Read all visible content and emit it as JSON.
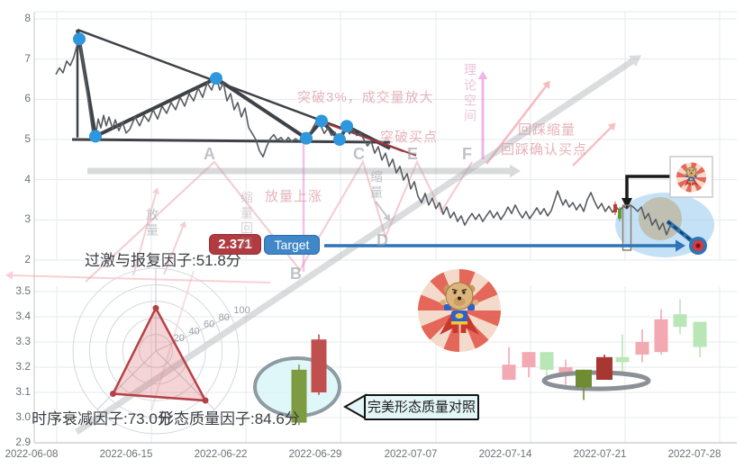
{
  "chart_data": [
    {
      "type": "line",
      "title": "",
      "xlabel": "",
      "ylabel": "",
      "ylim": [
        2,
        8
      ],
      "y_ticks": [
        8,
        7,
        6,
        5,
        4,
        3,
        2
      ],
      "x_dates": [
        "2022-06-08",
        "2022-06-15",
        "2022-06-22",
        "2022-06-29",
        "2022-07-07",
        "2022-07-14",
        "2022-07-21",
        "2022-07-28"
      ],
      "grid": "on",
      "series": [
        {
          "name": "price",
          "points": [
            [
              62,
              6.62
            ],
            [
              66,
              6.78
            ],
            [
              70,
              6.66
            ],
            [
              74,
              6.95
            ],
            [
              78,
              6.84
            ],
            [
              82,
              7.05
            ],
            [
              85,
              7.3
            ],
            [
              88,
              7.6
            ],
            [
              92,
              6.9
            ],
            [
              95,
              6.46
            ],
            [
              99,
              5.78
            ],
            [
              103,
              5.16
            ],
            [
              106,
              5.07
            ],
            [
              109,
              5.51
            ],
            [
              112,
              5.29
            ],
            [
              115,
              5.6
            ],
            [
              118,
              5.34
            ],
            [
              121,
              5.56
            ],
            [
              125,
              5.27
            ],
            [
              128,
              5.49
            ],
            [
              132,
              5.22
            ],
            [
              136,
              5.43
            ],
            [
              140,
              5.16
            ],
            [
              144,
              5.25
            ],
            [
              150,
              5.56
            ],
            [
              155,
              5.34
            ],
            [
              160,
              5.6
            ],
            [
              165,
              5.45
            ],
            [
              170,
              5.74
            ],
            [
              175,
              5.51
            ],
            [
              180,
              5.83
            ],
            [
              185,
              5.65
            ],
            [
              190,
              5.92
            ],
            [
              195,
              5.74
            ],
            [
              200,
              6.05
            ],
            [
              205,
              5.83
            ],
            [
              210,
              6.14
            ],
            [
              215,
              5.96
            ],
            [
              220,
              6.28
            ],
            [
              225,
              6.05
            ],
            [
              230,
              6.41
            ],
            [
              235,
              6.23
            ],
            [
              240,
              6.57
            ],
            [
              244,
              6.23
            ],
            [
              248,
              6.41
            ],
            [
              252,
              5.96
            ],
            [
              256,
              6.14
            ],
            [
              260,
              5.74
            ],
            [
              264,
              5.92
            ],
            [
              268,
              5.56
            ],
            [
              272,
              5.78
            ],
            [
              276,
              5.3
            ],
            [
              280,
              5.15
            ],
            [
              284,
              5.0
            ],
            [
              288,
              4.72
            ],
            [
              292,
              4.57
            ],
            [
              296,
              4.82
            ],
            [
              300,
              5.02
            ],
            [
              304,
              5.12
            ],
            [
              308,
              4.98
            ],
            [
              312,
              5.05
            ],
            [
              316,
              4.93
            ],
            [
              320,
              5.05
            ],
            [
              324,
              4.95
            ],
            [
              328,
              5.02
            ],
            [
              332,
              4.96
            ],
            [
              336,
              5.05
            ],
            [
              340,
              4.98
            ],
            [
              344,
              5.15
            ],
            [
              348,
              5.32
            ],
            [
              352,
              5.48
            ],
            [
              356,
              5.35
            ],
            [
              360,
              5.15
            ],
            [
              364,
              5.28
            ],
            [
              368,
              5.1
            ],
            [
              372,
              5.18
            ],
            [
              376,
              4.98
            ],
            [
              380,
              5.18
            ],
            [
              384,
              5.34
            ],
            [
              388,
              5.14
            ],
            [
              392,
              5.25
            ],
            [
              396,
              5.1
            ],
            [
              400,
              5.16
            ],
            [
              404,
              5.0
            ],
            [
              408,
              4.84
            ],
            [
              412,
              4.96
            ],
            [
              416,
              4.66
            ],
            [
              420,
              4.82
            ],
            [
              424,
              4.49
            ],
            [
              428,
              4.66
            ],
            [
              432,
              4.33
            ],
            [
              436,
              4.51
            ],
            [
              440,
              4.17
            ],
            [
              444,
              4.33
            ],
            [
              448,
              3.99
            ],
            [
              452,
              4.15
            ],
            [
              456,
              3.77
            ],
            [
              460,
              3.95
            ],
            [
              464,
              3.59
            ],
            [
              468,
              3.43
            ],
            [
              472,
              3.66
            ],
            [
              476,
              3.37
            ],
            [
              480,
              3.54
            ],
            [
              484,
              3.28
            ],
            [
              488,
              3.43
            ],
            [
              492,
              3.14
            ],
            [
              496,
              3.32
            ],
            [
              500,
              3.05
            ],
            [
              504,
              3.19
            ],
            [
              508,
              2.96
            ],
            [
              512,
              3.1
            ],
            [
              516,
              2.87
            ],
            [
              520,
              3.03
            ],
            [
              524,
              3.16
            ],
            [
              528,
              3.01
            ],
            [
              532,
              3.14
            ],
            [
              536,
              2.96
            ],
            [
              540,
              3.1
            ],
            [
              544,
              3.23
            ],
            [
              548,
              3.05
            ],
            [
              552,
              3.19
            ],
            [
              556,
              3.01
            ],
            [
              560,
              3.14
            ],
            [
              564,
              3.32
            ],
            [
              568,
              3.16
            ],
            [
              572,
              3.37
            ],
            [
              576,
              3.19
            ],
            [
              580,
              3.05
            ],
            [
              584,
              3.21
            ],
            [
              588,
              3.03
            ],
            [
              592,
              3.16
            ],
            [
              596,
              3.3
            ],
            [
              600,
              3.14
            ],
            [
              604,
              3.28
            ],
            [
              608,
              3.1
            ],
            [
              612,
              3.23
            ],
            [
              616,
              3.5
            ],
            [
              619,
              3.72
            ],
            [
              622,
              3.54
            ],
            [
              625,
              3.37
            ],
            [
              628,
              3.5
            ],
            [
              632,
              3.32
            ],
            [
              636,
              3.43
            ],
            [
              640,
              3.25
            ],
            [
              644,
              3.39
            ],
            [
              648,
              3.21
            ],
            [
              652,
              3.5
            ],
            [
              656,
              3.68
            ],
            [
              660,
              3.46
            ],
            [
              664,
              3.28
            ],
            [
              668,
              3.41
            ],
            [
              672,
              3.21
            ],
            [
              676,
              3.34
            ],
            [
              680,
              3.19
            ],
            [
              684,
              3.32
            ],
            [
              688,
              3.23
            ],
            [
              692,
              3.34
            ],
            [
              696,
              3.28
            ],
            [
              700,
              3.37
            ],
            [
              704,
              3.3
            ],
            [
              708,
              3.21
            ],
            [
              712,
              3.32
            ],
            [
              716,
              3.03
            ],
            [
              720,
              3.16
            ],
            [
              724,
              2.87
            ],
            [
              728,
              3.01
            ],
            [
              732,
              2.76
            ],
            [
              736,
              2.92
            ],
            [
              740,
              2.63
            ],
            [
              744,
              2.85
            ]
          ]
        }
      ],
      "pattern_dots": [
        [
          88,
          7.5
        ],
        [
          106,
          5.08
        ],
        [
          240,
          6.52
        ],
        [
          340,
          5.03
        ],
        [
          357,
          5.46
        ],
        [
          377,
          5.0
        ],
        [
          385,
          5.33
        ]
      ],
      "pattern_zigzag": [
        [
          86,
          7.73
        ],
        [
          106,
          5.08
        ],
        [
          240,
          6.52
        ],
        [
          340,
          5.03
        ],
        [
          357,
          5.46
        ],
        [
          377,
          5.0
        ],
        [
          385,
          5.33
        ],
        [
          433,
          4.78
        ]
      ],
      "triangle_vertical": [
        [
          86,
          7.73
        ],
        [
          86,
          5.05
        ]
      ],
      "triangle_horizontal": [
        [
          80,
          5.0
        ],
        [
          433,
          4.93
        ]
      ],
      "triangle_hypotenuse": [
        [
          86,
          7.73
        ],
        [
          448,
          4.71
        ]
      ],
      "red_trend_line": [
        [
          357,
          5.44
        ],
        [
          462,
          4.6
        ]
      ],
      "target_price": 2.371
    },
    {
      "type": "candlestick",
      "ylim": [
        2.9,
        3.5
      ],
      "y_ticks": [
        3.5,
        3.4,
        3.3,
        3.2,
        3.1,
        3.0,
        2.9
      ],
      "grid": "on",
      "perfect_pattern_candles": [
        {
          "x": 332,
          "open": 3.19,
          "close": 2.98,
          "high": 3.21,
          "low": 2.97,
          "color": "pgreen"
        },
        {
          "x": 354,
          "open": 3.1,
          "close": 3.31,
          "high": 3.33,
          "low": 3.09,
          "color": "pred"
        }
      ],
      "candles": [
        {
          "x": 565,
          "open": 3.15,
          "close": 3.21,
          "high": 3.28,
          "low": 3.15,
          "color": "pink"
        },
        {
          "x": 587,
          "open": 3.2,
          "close": 3.26,
          "high": 3.26,
          "low": 3.16,
          "color": "pink"
        },
        {
          "x": 607,
          "open": 3.26,
          "close": 3.19,
          "high": 3.26,
          "low": 3.16,
          "color": "green"
        },
        {
          "x": 628,
          "open": 3.17,
          "close": 3.2,
          "high": 3.23,
          "low": 3.13,
          "color": "pink"
        },
        {
          "x": 648,
          "open": 3.19,
          "close": 3.12,
          "high": 3.19,
          "low": 3.07,
          "color": "dgreen"
        },
        {
          "x": 671,
          "open": 3.15,
          "close": 3.24,
          "high": 3.25,
          "low": 3.15,
          "color": "dred"
        },
        {
          "x": 691,
          "open": 3.24,
          "close": 3.22,
          "high": 3.33,
          "low": 3.17,
          "color": "green"
        },
        {
          "x": 713,
          "open": 3.25,
          "close": 3.3,
          "high": 3.35,
          "low": 3.22,
          "color": "pink"
        },
        {
          "x": 734,
          "open": 3.26,
          "close": 3.39,
          "high": 3.43,
          "low": 3.25,
          "color": "pink"
        },
        {
          "x": 755,
          "open": 3.41,
          "close": 3.36,
          "high": 3.47,
          "low": 3.33,
          "color": "green"
        },
        {
          "x": 777,
          "open": 3.38,
          "close": 3.28,
          "high": 3.38,
          "low": 3.24,
          "color": "green"
        }
      ]
    },
    {
      "type": "radar",
      "categories": [
        "过激与报复因子",
        "时序衰减因子",
        "形态质量因子"
      ],
      "values": [
        51.8,
        73.0,
        84.6
      ],
      "rings": [
        20,
        40,
        60,
        80,
        100
      ],
      "max": 100
    }
  ],
  "annotations": {
    "target_value": "2.371",
    "target_label": "Target",
    "factor_overreaction": "过激与报复因子:51.8分",
    "factor_time_decay": "时序衰减因子:73.0分",
    "factor_pattern_quality": "形态质量因子:84.6分",
    "callout": "完美形态质量对照"
  },
  "watermark": {
    "breakout_volume": "突破3%，成交量放大",
    "breakout_buy_point": "突破买点",
    "pullback_shrink": "回踩缩量",
    "pullback_confirm_buy": "回踩确认买点",
    "volume_rise": "放量上涨",
    "theory_space": "理论空间",
    "volume_v": "放量",
    "shrink_pullback_v": "缩量回踩",
    "shrink_v": "缩量",
    "letters": {
      "A": "A",
      "B": "B",
      "C": "C",
      "D": "D",
      "E": "E",
      "F": "F"
    }
  },
  "icons": {
    "mascot": "superhero-dog-mascot",
    "target_marker": "bullseye-target-icon"
  },
  "colors": {
    "dot_blue": "#2f97dd",
    "pattern_dark": "#3e4247",
    "price_line": "#585c61",
    "red_trend": "#a8353a",
    "badge_red": "#b23b42",
    "badge_blue": "#3f87c9",
    "target_blue": "#2e75b6",
    "candle_pink": "#f2a9b2",
    "candle_green": "#b9e6b6",
    "candle_dgreen": "#6e8c31",
    "candle_dred": "#a83632",
    "perfect_green": "#7d9c42",
    "perfect_red": "#c0504d",
    "radar_red": "#b64045",
    "grid": "#e6e8eb"
  }
}
